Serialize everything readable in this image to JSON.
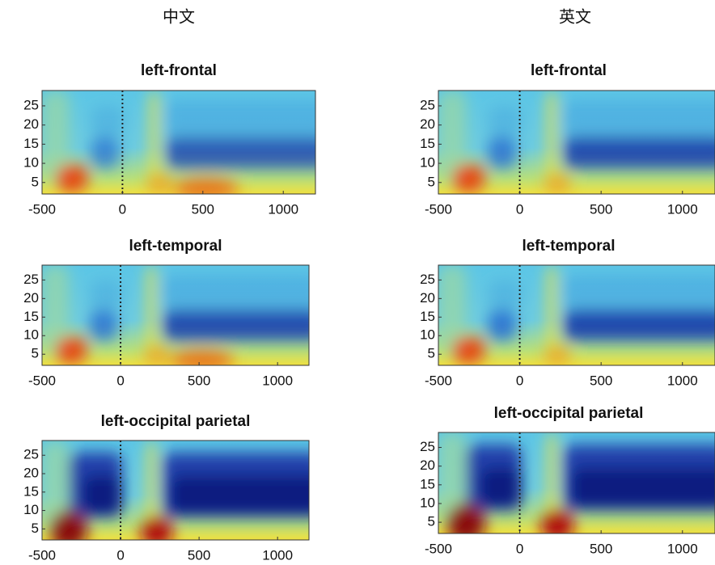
{
  "column_headers": [
    "中文",
    "英文"
  ],
  "chart_data": [
    {
      "type": "heatmap",
      "title": "left-frontal",
      "xlim": [
        -500,
        1200
      ],
      "xticks": [
        -500,
        0,
        500,
        1000
      ],
      "ylim": [
        2,
        29
      ],
      "yticks": [
        5,
        10,
        15,
        20,
        25
      ],
      "vline": 0
    },
    {
      "type": "heatmap",
      "title": "left-frontal",
      "xlim": [
        -500,
        1200
      ],
      "xticks": [
        -500,
        0,
        500,
        1000
      ],
      "ylim": [
        2,
        29
      ],
      "yticks": [
        5,
        10,
        15,
        20,
        25
      ],
      "vline": 0
    },
    {
      "type": "heatmap",
      "title": "left-temporal",
      "xlim": [
        -500,
        1200
      ],
      "xticks": [
        -500,
        0,
        500,
        1000
      ],
      "ylim": [
        2,
        29
      ],
      "yticks": [
        5,
        10,
        15,
        20,
        25
      ],
      "vline": 0
    },
    {
      "type": "heatmap",
      "title": "left-temporal",
      "xlim": [
        -500,
        1200
      ],
      "xticks": [
        -500,
        0,
        500,
        1000
      ],
      "ylim": [
        2,
        29
      ],
      "yticks": [
        5,
        10,
        15,
        20,
        25
      ],
      "vline": 0
    },
    {
      "type": "heatmap",
      "title": "left-occipital parietal",
      "xlim": [
        -500,
        1200
      ],
      "xticks": [
        -500,
        0,
        500,
        1000
      ],
      "ylim": [
        2,
        29
      ],
      "yticks": [
        5,
        10,
        15,
        20,
        25
      ],
      "vline": 0
    },
    {
      "type": "heatmap",
      "title": "left-occipital parietal",
      "xlim": [
        -500,
        1200
      ],
      "xticks": [
        -500,
        0,
        500,
        1000
      ],
      "ylim": [
        2,
        29
      ],
      "yticks": [
        5,
        10,
        15,
        20,
        25
      ],
      "vline": 0
    }
  ]
}
